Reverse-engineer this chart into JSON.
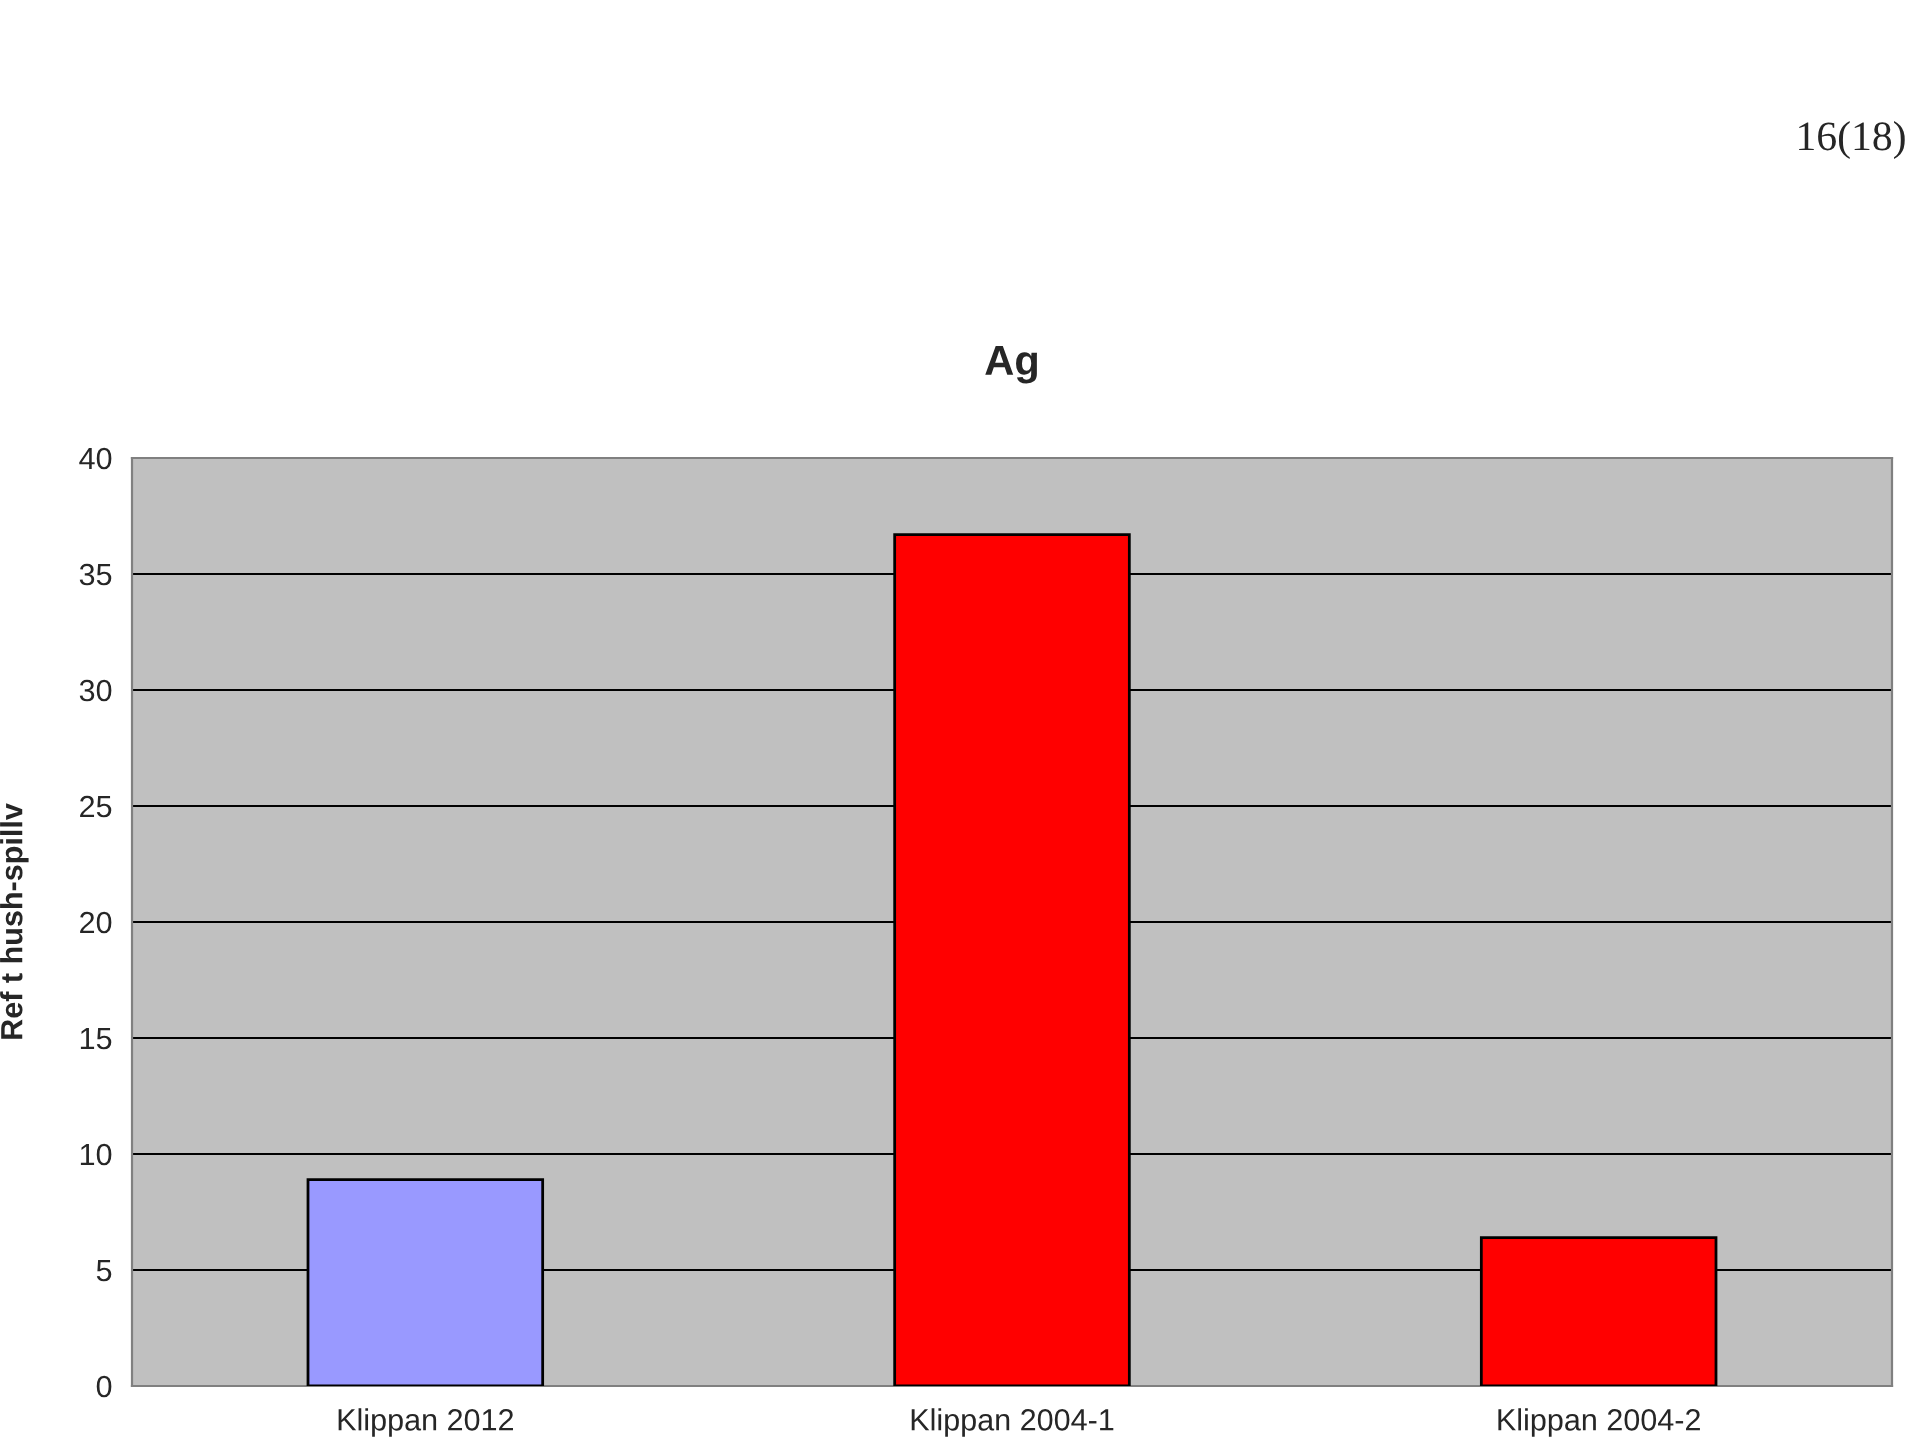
{
  "chart_data": {
    "type": "bar",
    "title": "Ag",
    "ylabel": "Ref t hush-spillv",
    "categories": [
      "Klippan 2012",
      "Klippan 2004-1",
      "Klippan 2004-2"
    ],
    "values": [
      8.9,
      36.7,
      6.4
    ],
    "colors": [
      "#9999ff",
      "#ff0000",
      "#ff0000"
    ],
    "ylim": [
      0,
      40
    ],
    "yticks": [
      0,
      5,
      10,
      15,
      20,
      25,
      30,
      35,
      40
    ],
    "grid": "y",
    "annotations": [
      "16(18)"
    ]
  }
}
